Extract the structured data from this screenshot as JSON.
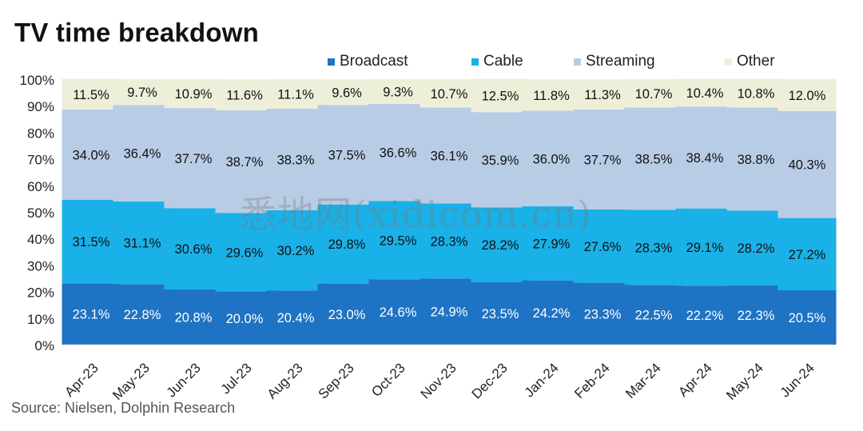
{
  "title": "TV time breakdown",
  "source": "Source:  Nielsen,  Dolphin Research",
  "watermark": "悉地网(xidicom.cn)",
  "legend": [
    {
      "name": "Broadcast",
      "color": "#1f73c4"
    },
    {
      "name": "Cable",
      "color": "#19b1e8"
    },
    {
      "name": "Streaming",
      "color": "#b9cce6"
    },
    {
      "name": "Other",
      "color": "#edefd9"
    }
  ],
  "chart_data": {
    "type": "bar",
    "stacked": true,
    "categories": [
      "Apr-23",
      "May-23",
      "Jun-23",
      "Jul-23",
      "Aug-23",
      "Sep-23",
      "Oct-23",
      "Nov-23",
      "Dec-23",
      "Jan-24",
      "Feb-24",
      "Mar-24",
      "Apr-24",
      "May-24",
      "Jun-24"
    ],
    "series": [
      {
        "name": "Broadcast",
        "values": [
          23.1,
          22.8,
          20.8,
          20.0,
          20.4,
          23.0,
          24.6,
          24.9,
          23.5,
          24.2,
          23.3,
          22.5,
          22.2,
          22.3,
          20.5
        ],
        "labels": [
          "23.1%",
          "22.8%",
          "20.8%",
          "20.0%",
          "20.4%",
          "23.0%",
          "24.6%",
          "24.9%",
          "23.5%",
          "24.2%",
          "23.3%",
          "22.5%",
          "22.2%",
          "22.3%",
          "20.5%"
        ]
      },
      {
        "name": "Cable",
        "values": [
          31.5,
          31.1,
          30.6,
          29.6,
          30.2,
          29.8,
          29.5,
          28.3,
          28.2,
          27.9,
          27.6,
          28.3,
          29.1,
          28.2,
          27.2
        ],
        "labels": [
          "31.5%",
          "31.1%",
          "30.6%",
          "29.6%",
          "30.2%",
          "29.8%",
          "29.5%",
          "28.3%",
          "28.2%",
          "27.9%",
          "27.6%",
          "28.3%",
          "29.1%",
          "28.2%",
          "27.2%"
        ]
      },
      {
        "name": "Streaming",
        "values": [
          34.0,
          36.4,
          37.7,
          38.7,
          38.3,
          37.5,
          36.6,
          36.1,
          35.9,
          36.0,
          37.7,
          38.5,
          38.4,
          38.8,
          40.3
        ],
        "labels": [
          "34.0%",
          "36.4%",
          "37.7%",
          "38.7%",
          "38.3%",
          "37.5%",
          "36.6%",
          "36.1%",
          "35.9%",
          "36.0%",
          "37.7%",
          "38.5%",
          "38.4%",
          "38.8%",
          "40.3%"
        ]
      },
      {
        "name": "Other",
        "values": [
          11.5,
          9.7,
          10.9,
          11.6,
          11.1,
          9.6,
          9.3,
          10.7,
          12.5,
          11.8,
          11.3,
          10.7,
          10.4,
          10.8,
          12.0
        ],
        "labels": [
          "11.5%",
          "9.7%",
          "10.9%",
          "11.6%",
          "11.1%",
          "9.6%",
          "9.3%",
          "10.7%",
          "12.5%",
          "11.8%",
          "11.3%",
          "10.7%",
          "10.4%",
          "10.8%",
          "12.0%"
        ]
      }
    ],
    "ylim": [
      0,
      100
    ],
    "yticks": [
      "0%",
      "10%",
      "20%",
      "30%",
      "40%",
      "50%",
      "60%",
      "70%",
      "80%",
      "90%",
      "100%"
    ],
    "grid": false,
    "legend_position": "top-right"
  }
}
